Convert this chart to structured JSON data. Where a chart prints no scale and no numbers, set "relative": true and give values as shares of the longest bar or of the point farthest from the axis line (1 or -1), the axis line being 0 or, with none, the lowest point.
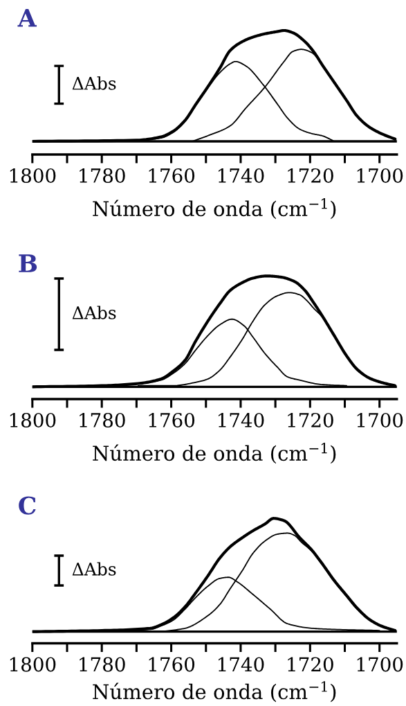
{
  "chart_data": [
    {
      "type": "line",
      "title": "A",
      "xlabel": "Número de onda (cm$^{−1}$)",
      "relative": true,
      "tick_labels": "x",
      "annotations": [
        "ΔAbs"
      ],
      "xlim": [
        1800,
        1695
      ],
      "xticks": [
        1800,
        1780,
        1760,
        1740,
        1720,
        1700
      ],
      "ref_lines": [
        {
          "axis": "y",
          "value": 0,
          "color": "#000000"
        }
      ],
      "series": [
        {
          "color": "#000000",
          "x": [
            1800,
            1770,
            1763,
            1759.5,
            1756,
            1753,
            1749.5,
            1746,
            1743,
            1739.5,
            1736.5,
            1733,
            1729.5,
            1727.5,
            1725,
            1721.5,
            1719,
            1716.5,
            1713,
            1709.5,
            1706.5,
            1703,
            1699.5,
            1695.5
          ],
          "values": [
            0,
            0.01,
            0.04,
            0.09,
            0.19,
            0.33,
            0.49,
            0.66,
            0.82,
            0.9,
            0.94,
            0.97,
            0.99,
            1.0,
            0.98,
            0.9,
            0.81,
            0.69,
            0.53,
            0.37,
            0.23,
            0.13,
            0.07,
            0.02
          ]
        },
        {
          "color": "#000000",
          "x": [
            1775,
            1763,
            1759.5,
            1756,
            1753,
            1749.5,
            1746,
            1743,
            1741.5,
            1738.5,
            1733.5,
            1729.5,
            1726.5,
            1723,
            1719.5,
            1716.5,
            1713
          ],
          "values": [
            0,
            0.03,
            0.08,
            0.18,
            0.32,
            0.48,
            0.62,
            0.7,
            0.72,
            0.68,
            0.51,
            0.34,
            0.21,
            0.11,
            0.07,
            0.05,
            0
          ]
        },
        {
          "color": "#000000",
          "x": [
            1754,
            1749.5,
            1743,
            1738.5,
            1733,
            1727.5,
            1725,
            1722.5,
            1719.5,
            1716.5,
            1713,
            1709.5,
            1706.5,
            1703,
            1699.5
          ],
          "values": [
            0,
            0.05,
            0.14,
            0.3,
            0.49,
            0.72,
            0.81,
            0.83,
            0.8,
            0.69,
            0.53,
            0.37,
            0.23,
            0.13,
            0.07
          ]
        }
      ]
    },
    {
      "type": "line",
      "title": "B",
      "xlabel": "Número de onda (cm$^{−1}$)",
      "relative": true,
      "tick_labels": "x",
      "annotations": [
        "ΔAbs"
      ],
      "xlim": [
        1800,
        1695
      ],
      "xticks": [
        1800,
        1780,
        1760,
        1740,
        1720,
        1700
      ],
      "ref_lines": [
        {
          "axis": "y",
          "value": 0,
          "color": "#000000"
        }
      ],
      "series": [
        {
          "color": "#000000",
          "x": [
            1800,
            1780,
            1769.5,
            1763,
            1759.5,
            1756,
            1753,
            1749.5,
            1746,
            1743,
            1739.5,
            1736.5,
            1732.5,
            1728.5,
            1724.5,
            1721.5,
            1719,
            1716.5,
            1713,
            1709.5,
            1706.5,
            1703,
            1699.5,
            1695.5
          ],
          "values": [
            0,
            0.01,
            0.03,
            0.07,
            0.14,
            0.24,
            0.41,
            0.59,
            0.75,
            0.87,
            0.94,
            0.98,
            1.0,
            0.99,
            0.95,
            0.87,
            0.76,
            0.64,
            0.46,
            0.28,
            0.16,
            0.08,
            0.04,
            0.01
          ]
        },
        {
          "color": "#000000",
          "x": [
            1780,
            1769.5,
            1763,
            1759.5,
            1756,
            1753,
            1749.5,
            1746,
            1742.5,
            1739,
            1736.5,
            1733,
            1729.5,
            1726.5,
            1723,
            1716.5,
            1709.5
          ],
          "values": [
            0.01,
            0.03,
            0.06,
            0.12,
            0.21,
            0.33,
            0.46,
            0.56,
            0.61,
            0.55,
            0.45,
            0.3,
            0.18,
            0.09,
            0.06,
            0.02,
            0.01
          ]
        },
        {
          "color": "#000000",
          "x": [
            1769.5,
            1759.5,
            1753,
            1749.5,
            1746,
            1743,
            1739.5,
            1736.5,
            1733,
            1729.5,
            1726,
            1723,
            1721,
            1719,
            1716.5,
            1713,
            1709.5,
            1706.5,
            1703,
            1699.5
          ],
          "values": [
            0.01,
            0.01,
            0.04,
            0.07,
            0.15,
            0.27,
            0.43,
            0.59,
            0.74,
            0.82,
            0.85,
            0.83,
            0.78,
            0.71,
            0.63,
            0.45,
            0.28,
            0.15,
            0.08,
            0.04
          ]
        }
      ]
    },
    {
      "type": "line",
      "title": "C",
      "xlabel": "Número de onda (cm$^{−1}$)",
      "relative": true,
      "tick_labels": "x",
      "annotations": [
        "ΔAbs"
      ],
      "xlim": [
        1800,
        1695
      ],
      "xticks": [
        1800,
        1780,
        1760,
        1740,
        1720,
        1700
      ],
      "ref_lines": [
        {
          "axis": "y",
          "value": 0,
          "color": "#000000"
        }
      ],
      "series": [
        {
          "color": "#000000",
          "x": [
            1800,
            1780,
            1766,
            1763,
            1759.5,
            1756,
            1753,
            1749.5,
            1746,
            1743,
            1739.5,
            1736.5,
            1733,
            1730.5,
            1727.5,
            1723,
            1719.5,
            1716.5,
            1713,
            1709.5,
            1706.5,
            1703,
            1699.5,
            1695.5
          ],
          "values": [
            0,
            0.01,
            0.03,
            0.06,
            0.12,
            0.22,
            0.34,
            0.49,
            0.65,
            0.75,
            0.83,
            0.89,
            0.95,
            1.0,
            0.98,
            0.83,
            0.72,
            0.6,
            0.45,
            0.32,
            0.21,
            0.11,
            0.05,
            0.01
          ]
        },
        {
          "color": "#000000",
          "x": [
            1780,
            1766,
            1763,
            1759.5,
            1756,
            1753,
            1749.5,
            1746,
            1743.5,
            1741,
            1736.5,
            1731.5,
            1726.5,
            1719.5,
            1713,
            1700
          ],
          "values": [
            0.01,
            0.02,
            0.05,
            0.1,
            0.2,
            0.3,
            0.4,
            0.47,
            0.48,
            0.44,
            0.33,
            0.2,
            0.07,
            0.03,
            0.02,
            0.01
          ]
        },
        {
          "color": "#000000",
          "x": [
            1763,
            1756,
            1749.5,
            1746,
            1743,
            1739.5,
            1736.5,
            1733,
            1729.5,
            1726.5,
            1724.5,
            1722.5,
            1719.5,
            1716.5,
            1713,
            1709.5,
            1706.5,
            1703,
            1699.5
          ],
          "values": [
            0,
            0.03,
            0.14,
            0.24,
            0.38,
            0.54,
            0.69,
            0.8,
            0.86,
            0.87,
            0.85,
            0.79,
            0.71,
            0.59,
            0.44,
            0.31,
            0.2,
            0.11,
            0.05
          ]
        }
      ]
    }
  ]
}
